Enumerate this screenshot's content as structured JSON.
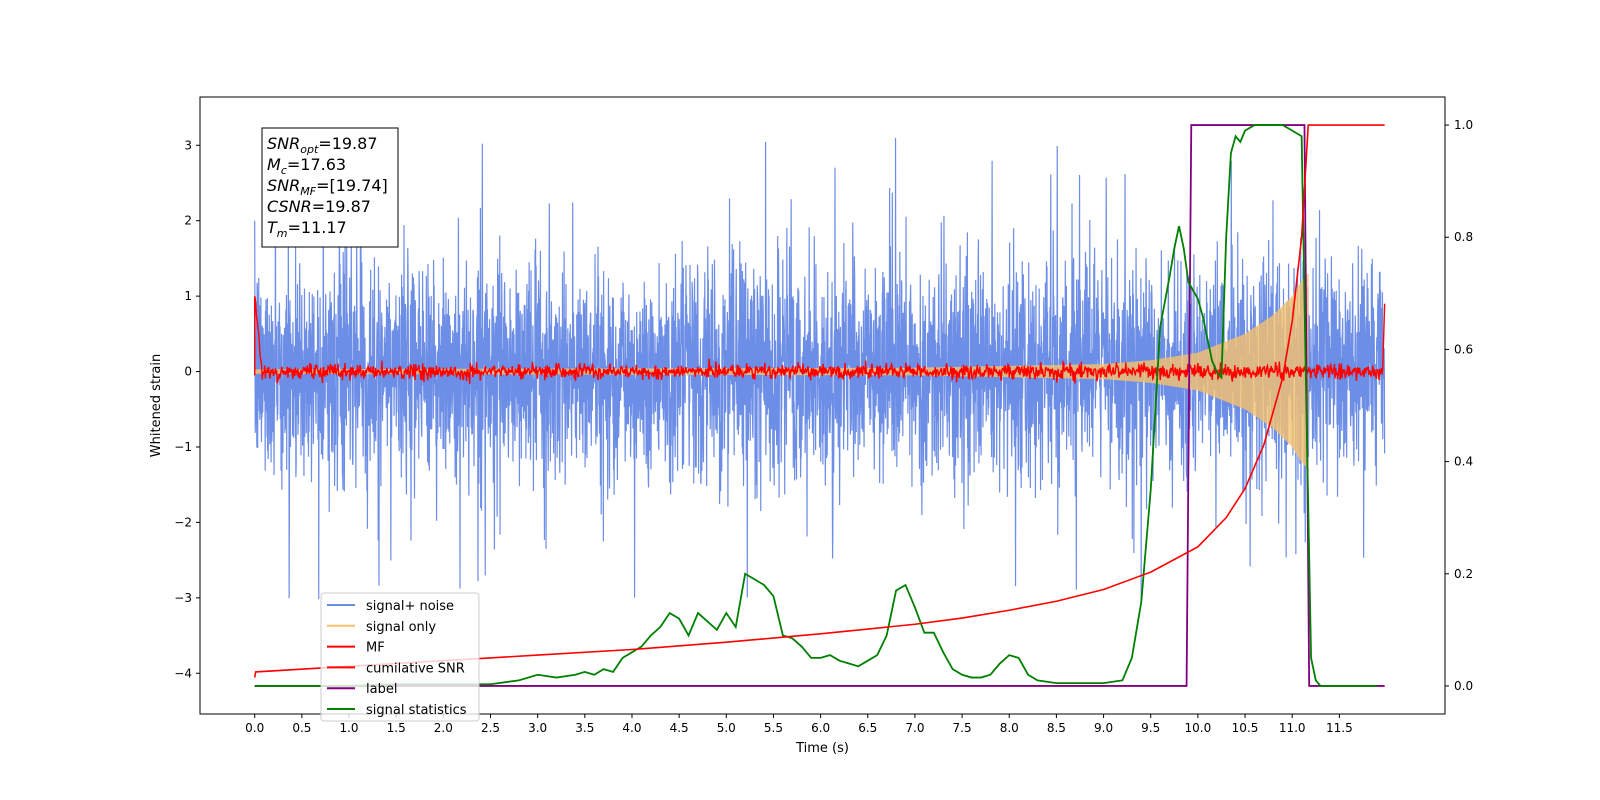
{
  "chart_data": {
    "type": "line",
    "xlabel": "Time (s)",
    "ylabel_left": "Whitened strain",
    "ylabel_right": "",
    "xlim": [
      -0.58,
      12.62
    ],
    "ylim_left": [
      -4.54,
      3.64
    ],
    "ylim_right": [
      -0.05,
      1.05
    ],
    "x_ticks": [
      0.0,
      0.5,
      1.0,
      1.5,
      2.0,
      2.5,
      3.0,
      3.5,
      4.0,
      4.5,
      5.0,
      5.5,
      6.0,
      6.5,
      7.0,
      7.5,
      8.0,
      8.5,
      9.0,
      9.5,
      10.0,
      10.5,
      11.0,
      11.5
    ],
    "x_tick_labels": [
      "0.0",
      "0.5",
      "1.0",
      "1.5",
      "2.0",
      "2.5",
      "3.0",
      "3.5",
      "4.0",
      "4.5",
      "5.0",
      "5.5",
      "6.0",
      "6.5",
      "7.0",
      "7.5",
      "8.0",
      "8.5",
      "9.0",
      "9.5",
      "10.0",
      "10.5",
      "11.0",
      "11.5"
    ],
    "y_ticks_left": [
      3,
      2,
      1,
      0,
      -1,
      -2,
      -3,
      -4
    ],
    "y_tick_labels_left": [
      "3",
      "2",
      "1",
      "0",
      "−1",
      "−2",
      "−3",
      "−4"
    ],
    "y_ticks_right": [
      1.0,
      0.8,
      0.6,
      0.4,
      0.2,
      0.0
    ],
    "y_tick_labels_right": [
      "1.0",
      "0.8",
      "0.6",
      "0.4",
      "0.2",
      "0.0"
    ],
    "annotation": {
      "lines": [
        {
          "var": "SNR",
          "sub": "opt",
          "value": "=19.87"
        },
        {
          "var": "M",
          "sub": "c",
          "value": "=17.63"
        },
        {
          "var": "SNR",
          "sub": "MF",
          "value": "=[19.74]"
        },
        {
          "var": "CSNR",
          "sub": "",
          "value": "=19.87"
        },
        {
          "var": "T",
          "sub": "m",
          "value": "=11.17"
        }
      ]
    },
    "legend": {
      "placement": "lower-left",
      "entries": [
        "signal+ noise",
        "signal only",
        "MF",
        "cumilative SNR",
        "label",
        "signal statistics"
      ]
    },
    "series": [
      {
        "name": "signal+ noise",
        "axis": "left",
        "color": "#6d8ee6",
        "kind": "noise",
        "t_start": 0.0,
        "t_end": 11.98,
        "typical_peak": 2.1,
        "max_peak": 3.3
      },
      {
        "name": "signal only",
        "axis": "left",
        "color": "#f5c26b",
        "kind": "chirp",
        "t_start": 0.0,
        "t_merger": 11.17,
        "amplitude": [
          [
            0.0,
            0.03
          ],
          [
            7.0,
            0.05
          ],
          [
            9.0,
            0.1
          ],
          [
            9.5,
            0.15
          ],
          [
            10.0,
            0.25
          ],
          [
            10.5,
            0.5
          ],
          [
            10.8,
            0.75
          ],
          [
            11.0,
            1.0
          ],
          [
            11.1,
            1.2
          ],
          [
            11.17,
            1.3
          ]
        ]
      },
      {
        "name": "MF",
        "axis": "left",
        "color": "#ff0000",
        "kind": "mf",
        "t_start": 0.0,
        "t_end": 11.98,
        "start_value": 1.0,
        "noise_level": 0.05,
        "end_value": 0.9
      },
      {
        "name": "cumilative SNR",
        "axis": "right",
        "color": "#ff0000",
        "x": [
          0.0,
          0.01,
          1.0,
          2.0,
          3.0,
          4.0,
          5.0,
          6.0,
          7.0,
          7.5,
          8.0,
          8.5,
          9.0,
          9.5,
          10.0,
          10.3,
          10.5,
          10.7,
          10.9,
          11.0,
          11.1,
          11.17,
          11.98
        ],
        "values": [
          0.015,
          0.025,
          0.035,
          0.045,
          0.055,
          0.065,
          0.078,
          0.093,
          0.11,
          0.121,
          0.135,
          0.151,
          0.172,
          0.203,
          0.248,
          0.3,
          0.352,
          0.43,
          0.55,
          0.65,
          0.8,
          1.0,
          1.0
        ]
      },
      {
        "name": "label",
        "axis": "right",
        "color": "#800080",
        "x": [
          0.0,
          9.88,
          9.93,
          11.13,
          11.18,
          11.98
        ],
        "values": [
          0.0,
          0.0,
          1.0,
          1.0,
          0.0,
          0.0
        ]
      },
      {
        "name": "signal statistics",
        "axis": "right",
        "color": "#008000",
        "x": [
          0.0,
          0.5,
          1.0,
          1.5,
          2.0,
          2.5,
          2.8,
          3.0,
          3.2,
          3.4,
          3.5,
          3.6,
          3.7,
          3.8,
          3.9,
          4.0,
          4.1,
          4.2,
          4.3,
          4.4,
          4.5,
          4.6,
          4.7,
          4.8,
          4.9,
          5.0,
          5.1,
          5.2,
          5.3,
          5.4,
          5.5,
          5.6,
          5.7,
          5.8,
          5.9,
          6.0,
          6.1,
          6.2,
          6.3,
          6.4,
          6.5,
          6.6,
          6.7,
          6.8,
          6.9,
          7.0,
          7.1,
          7.2,
          7.3,
          7.4,
          7.5,
          7.6,
          7.7,
          7.8,
          7.9,
          8.0,
          8.1,
          8.2,
          8.3,
          8.5,
          8.7,
          9.0,
          9.2,
          9.3,
          9.4,
          9.5,
          9.6,
          9.7,
          9.75,
          9.8,
          9.85,
          9.9,
          10.0,
          10.05,
          10.1,
          10.15,
          10.2,
          10.25,
          10.3,
          10.35,
          10.4,
          10.45,
          10.5,
          10.6,
          10.7,
          10.8,
          10.9,
          11.0,
          11.1,
          11.15,
          11.2,
          11.25,
          11.3,
          11.5,
          11.9
        ],
        "values": [
          0.0,
          0.0,
          0.0,
          0.003,
          0.003,
          0.003,
          0.01,
          0.02,
          0.015,
          0.02,
          0.025,
          0.02,
          0.03,
          0.025,
          0.05,
          0.06,
          0.07,
          0.09,
          0.105,
          0.13,
          0.12,
          0.09,
          0.13,
          0.115,
          0.1,
          0.13,
          0.105,
          0.2,
          0.19,
          0.18,
          0.16,
          0.09,
          0.085,
          0.07,
          0.05,
          0.05,
          0.055,
          0.045,
          0.04,
          0.035,
          0.045,
          0.055,
          0.09,
          0.17,
          0.18,
          0.14,
          0.095,
          0.095,
          0.06,
          0.03,
          0.02,
          0.015,
          0.015,
          0.02,
          0.04,
          0.055,
          0.05,
          0.02,
          0.01,
          0.005,
          0.005,
          0.005,
          0.01,
          0.05,
          0.15,
          0.35,
          0.64,
          0.73,
          0.78,
          0.82,
          0.78,
          0.72,
          0.69,
          0.66,
          0.62,
          0.58,
          0.56,
          0.55,
          0.8,
          0.95,
          0.98,
          0.97,
          0.99,
          1.0,
          1.0,
          1.0,
          1.0,
          0.99,
          0.98,
          0.5,
          0.05,
          0.01,
          0.0,
          0.0,
          0.0
        ]
      }
    ]
  }
}
